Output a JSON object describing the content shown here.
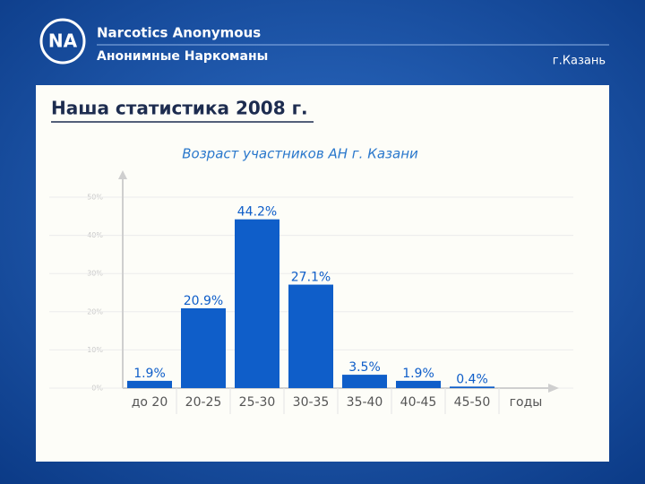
{
  "header": {
    "org_en": "Narcotics Anonymous",
    "org_ru": "Анонимные Наркоманы",
    "city": "г.Казань",
    "slide_title": "Наша статистика 2008 г."
  },
  "chart_data": {
    "type": "bar",
    "title": "Возраст участников АН г. Казани",
    "x_label": "годы",
    "categories": [
      "до 20",
      "20-25",
      "25-30",
      "30-35",
      "35-40",
      "40-45",
      "45-50"
    ],
    "values": [
      1.9,
      20.9,
      44.2,
      27.1,
      3.5,
      1.9,
      0.4
    ],
    "value_labels": [
      "1.9%",
      "20.9%",
      "44.2%",
      "27.1%",
      "3.5%",
      "1.9%",
      "0.4%"
    ],
    "color": "#0f5ec9",
    "ylim": [
      0,
      50
    ],
    "yticks": [
      {
        "value": 0,
        "label": "0%"
      },
      {
        "value": 10,
        "label": "10%"
      },
      {
        "value": 20,
        "label": "20%"
      },
      {
        "value": 30,
        "label": "30%"
      },
      {
        "value": 40,
        "label": "40%"
      },
      {
        "value": 50,
        "label": "50%"
      }
    ],
    "grid": true
  }
}
